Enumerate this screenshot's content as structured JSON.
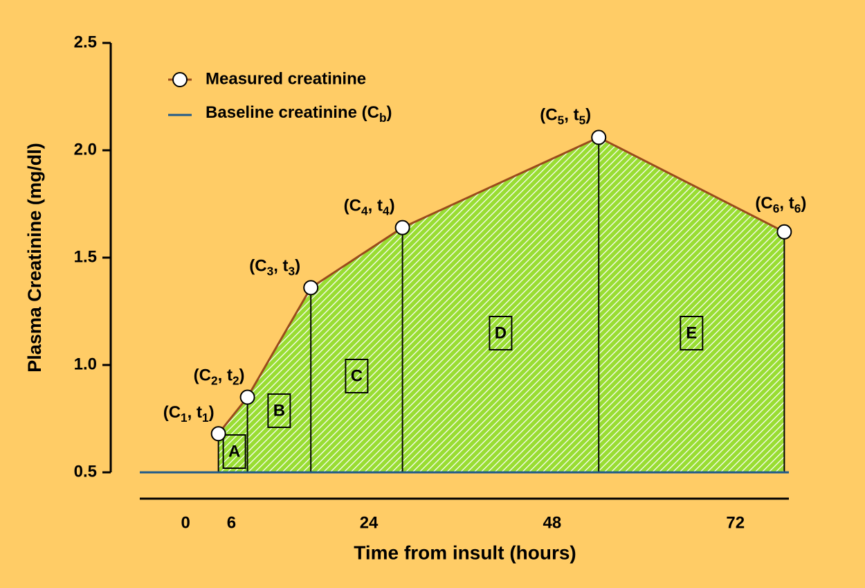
{
  "chart_data": {
    "type": "line",
    "xlabel": "Time from insult (hours)",
    "ylabel": "Plasma Creatinine (mg/dl)",
    "xlim": [
      -6,
      79
    ],
    "xticks": [
      0,
      6,
      24,
      48,
      72
    ],
    "ylim": [
      0.5,
      2.5
    ],
    "yticks": [
      0.5,
      {
        "value": 1.0,
        "label": "1.0"
      },
      1.5,
      {
        "value": 2.0,
        "label": "2.0"
      },
      2.5
    ],
    "series": [
      {
        "name": "Measured creatinine",
        "color": "#9a4a1c",
        "x": [
          4.3,
          8.1,
          16.4,
          28.4,
          54.1,
          78.4
        ],
        "values": [
          0.68,
          0.85,
          1.36,
          1.64,
          2.06,
          1.62
        ],
        "point_labels": [
          "(C1, t1)",
          "(C2, t2)",
          "(C3, t3)",
          "(C4, t4)",
          "(C5, t5)",
          "(C6, t6)"
        ]
      },
      {
        "name": "Baseline creatinine (Cb)",
        "color": "#1f5a8a",
        "value": 0.5
      }
    ],
    "regions": [
      "A",
      "B",
      "C",
      "D",
      "E"
    ],
    "fill_color": "#99dd33"
  }
}
